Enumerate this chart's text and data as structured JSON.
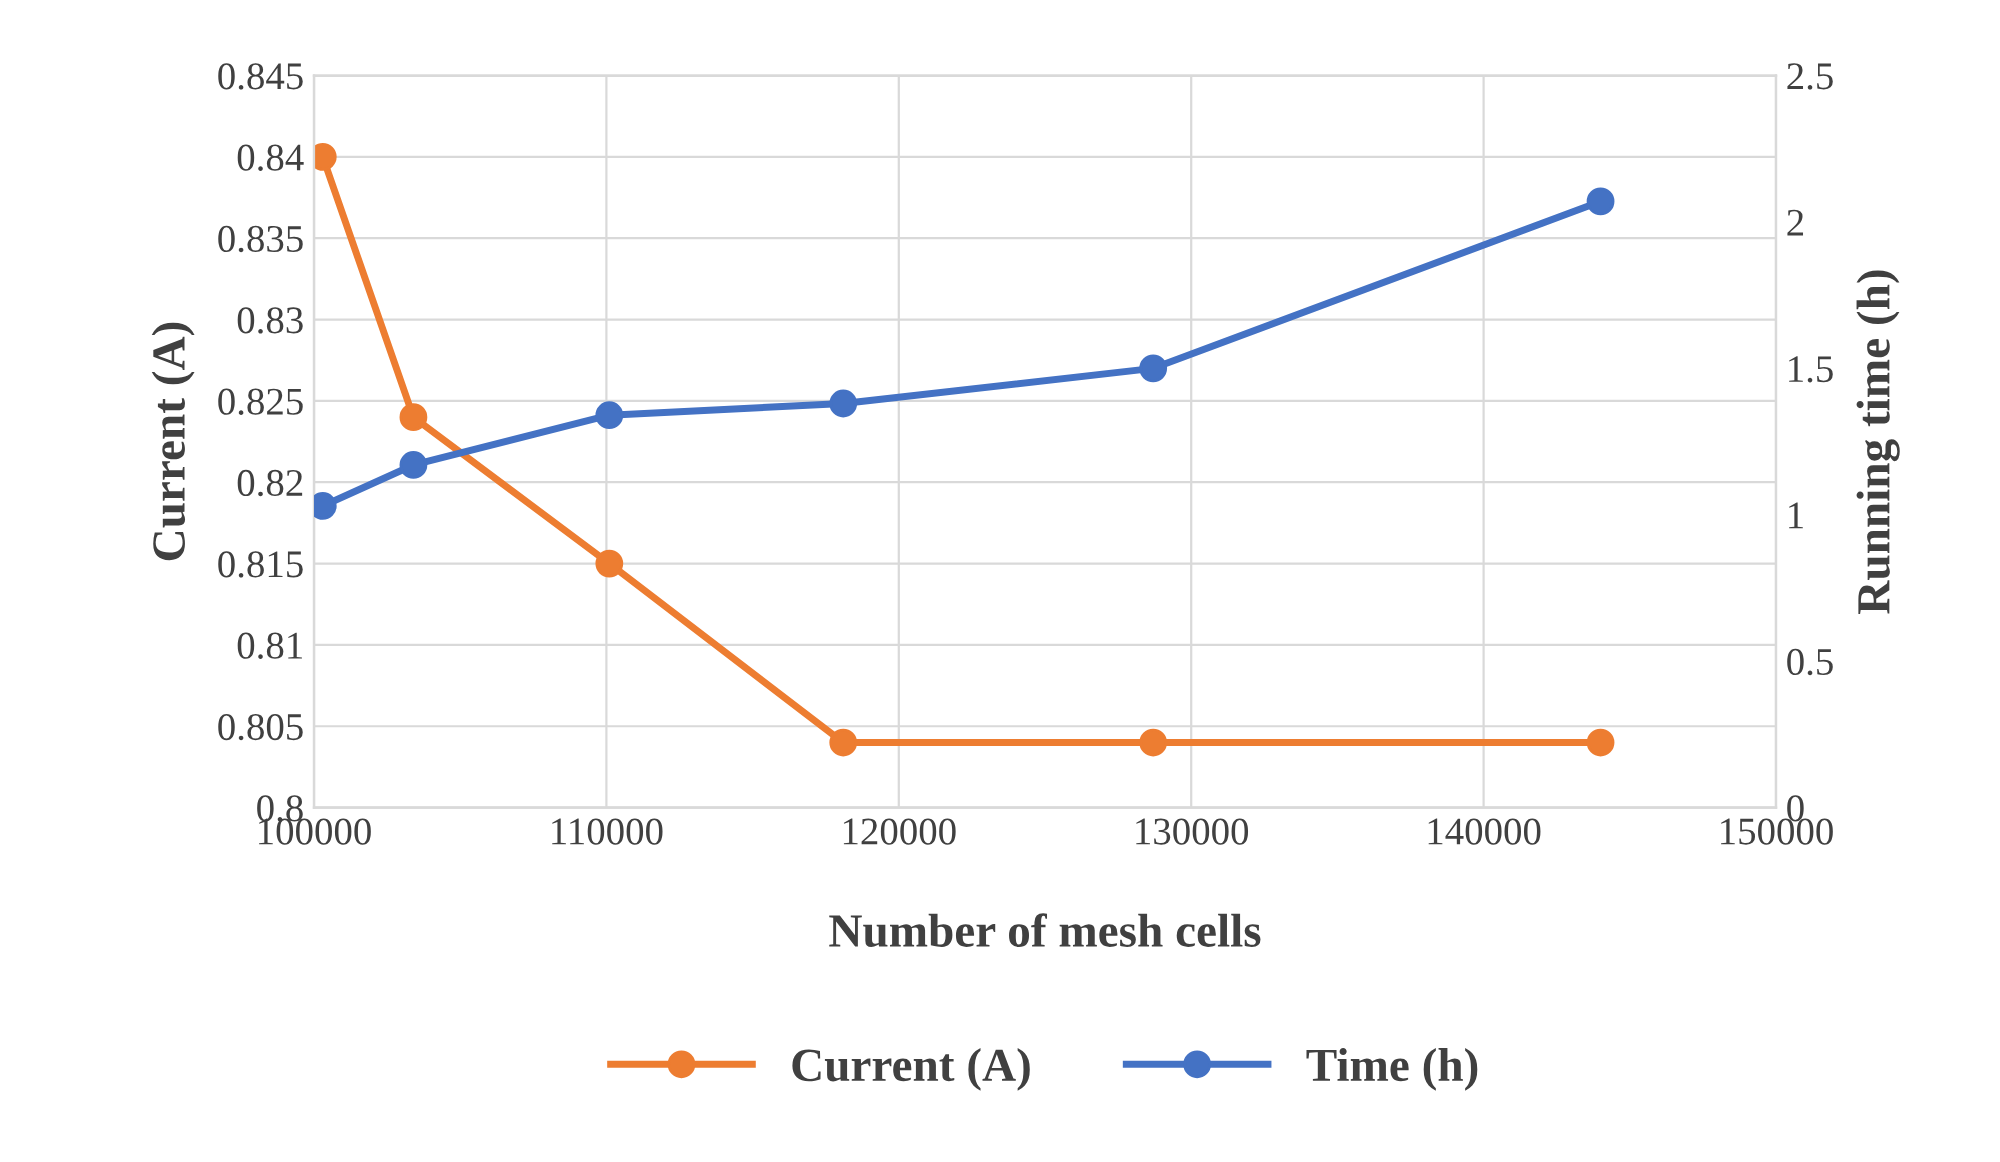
{
  "chart_data": {
    "type": "line",
    "xlabel": "Number of mesh cells",
    "ylabel": "Current (A)",
    "y2label": "Running time (h)",
    "x": [
      100300,
      103400,
      110100,
      118100,
      128700,
      144000
    ],
    "series": [
      {
        "name": "Current (A)",
        "color": "#ed7d31",
        "values": [
          0.84,
          0.824,
          0.815,
          0.804,
          0.804,
          0.804
        ]
      },
      {
        "name": "Time (h)",
        "color": "#4472c4",
        "axis": "y2",
        "values": [
          1.03,
          1.17,
          1.34,
          1.38,
          1.5,
          2.07
        ]
      }
    ],
    "xlim": [
      100000,
      150000
    ],
    "xticks": [
      100000,
      110000,
      120000,
      130000,
      140000,
      150000
    ],
    "ylim": [
      0.8,
      0.845
    ],
    "yticks": [
      {
        "value": 0.8,
        "label": "0.8"
      },
      {
        "value": 0.805,
        "label": "0.805"
      },
      {
        "value": 0.81,
        "label": "0.81"
      },
      {
        "value": 0.815,
        "label": "0.815"
      },
      {
        "value": 0.82,
        "label": "0.82"
      },
      {
        "value": 0.825,
        "label": "0.825"
      },
      {
        "value": 0.83,
        "label": "0.83"
      },
      {
        "value": 0.835,
        "label": "0.835"
      },
      {
        "value": 0.84,
        "label": "0.84"
      },
      {
        "value": 0.845,
        "label": "0.845"
      }
    ],
    "y2lim": [
      0,
      2.5
    ],
    "y2ticks": [
      0,
      0.5,
      1,
      1.5,
      2,
      2.5
    ],
    "grid": true,
    "legend": "bottom",
    "marker": "circle",
    "line_style": "solid"
  }
}
